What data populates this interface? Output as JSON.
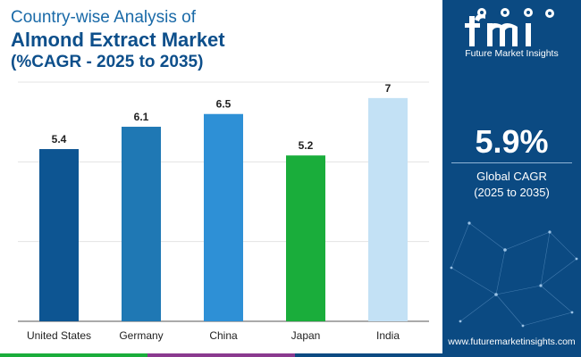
{
  "title": {
    "line1": "Country-wise Analysis of",
    "line2": "Almond Extract Market",
    "line3": "(%CAGR - 2025 to 2035)"
  },
  "chart_data": {
    "type": "bar",
    "categories": [
      "United States",
      "Germany",
      "China",
      "Japan",
      "India"
    ],
    "values": [
      5.4,
      6.1,
      6.5,
      5.2,
      7
    ],
    "value_labels": [
      "5.4",
      "6.1",
      "6.5",
      "5.2",
      "7"
    ],
    "bar_colors": [
      "#0d5592",
      "#1f78b4",
      "#2e90d6",
      "#1aad3b",
      "#c3e1f5"
    ],
    "ylim": [
      0,
      7.5
    ],
    "grid": true,
    "legend": "none"
  },
  "kpi": {
    "value": "5.9%",
    "label_line1": "Global CAGR",
    "label_line2": "(2025 to 2035)"
  },
  "brand": {
    "logo_text": "Future Market Insights",
    "website": "www.futuremarketinsights.com",
    "panel_color": "#0b4a82"
  },
  "stripe_colors": [
    "#1aad3b",
    "#8a3a8f",
    "#0b4a82"
  ]
}
